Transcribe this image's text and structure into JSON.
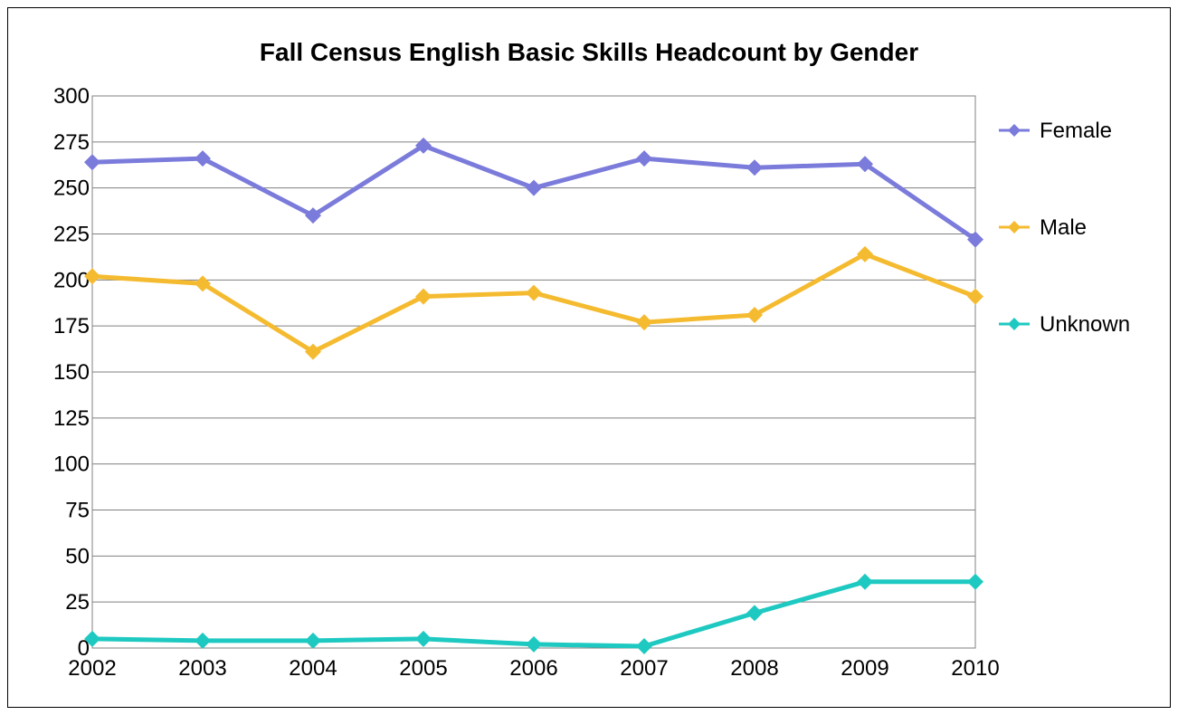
{
  "chart_data": {
    "type": "line",
    "title": "Fall Census English Basic Skills Headcount by Gender",
    "xlabel": "",
    "ylabel": "",
    "x": [
      "2002",
      "2003",
      "2004",
      "2005",
      "2006",
      "2007",
      "2008",
      "2009",
      "2010"
    ],
    "ylim": [
      0,
      300
    ],
    "yticks": [
      "0",
      "25",
      "50",
      "75",
      "100",
      "125",
      "150",
      "175",
      "200",
      "225",
      "250",
      "275",
      "300"
    ],
    "grid": true,
    "legend_position": "right",
    "series": [
      {
        "name": "Female",
        "color": "#7b7bdb",
        "values": [
          264,
          266,
          235,
          273,
          250,
          266,
          261,
          263,
          222
        ]
      },
      {
        "name": "Male",
        "color": "#f5bb30",
        "values": [
          202,
          198,
          161,
          191,
          193,
          177,
          181,
          214,
          191
        ]
      },
      {
        "name": "Unknown",
        "color": "#1ec9c1",
        "values": [
          5,
          4,
          4,
          5,
          2,
          1,
          19,
          36,
          36
        ]
      }
    ]
  }
}
